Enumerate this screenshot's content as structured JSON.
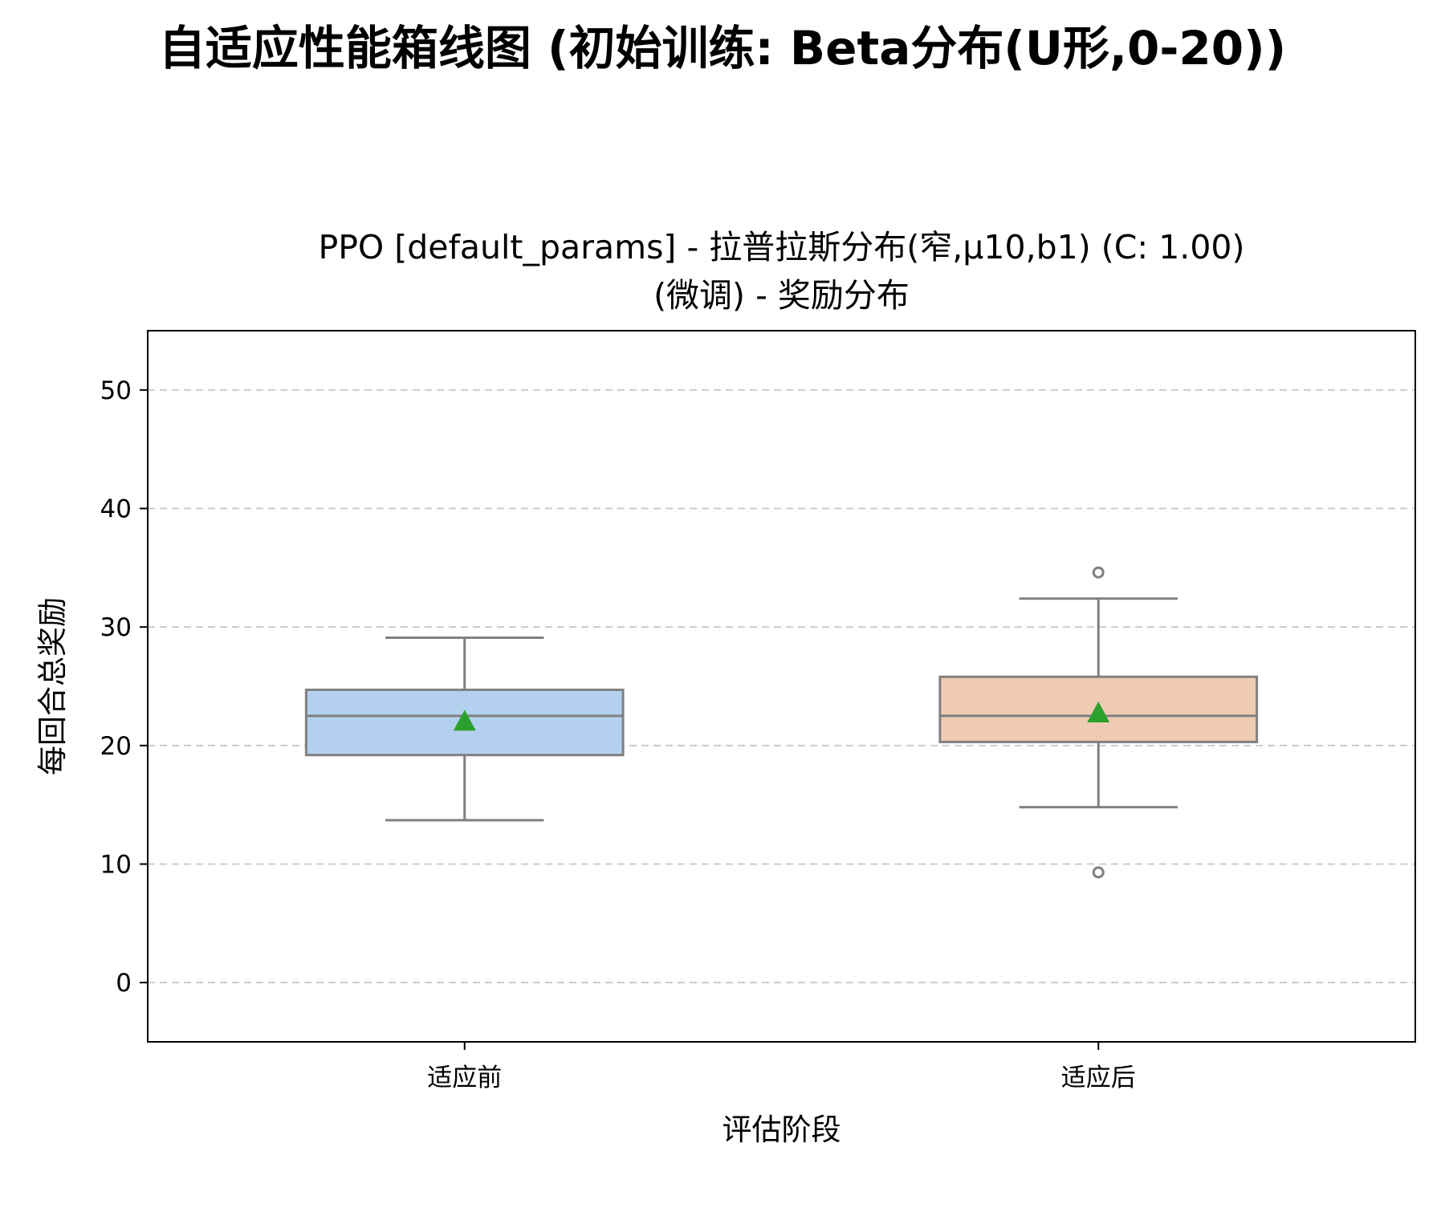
{
  "figure": {
    "suptitle": "自适应性能箱线图 (初始训练: Beta分布(U形,0-20))"
  },
  "chart_data": {
    "type": "box",
    "title_lines": [
      "PPO [default_params] - 拉普拉斯分布(窄,μ10,b1) (C: 1.00)",
      "(微调) - 奖励分布"
    ],
    "xlabel": "评估阶段",
    "ylabel": "每回合总奖励",
    "ylim": [
      -5,
      55
    ],
    "yticks": [
      0,
      10,
      20,
      30,
      40,
      50
    ],
    "grid": {
      "axis": "y",
      "style": "dashed",
      "color": "#cccccc"
    },
    "categories": [
      "适应前",
      "适应后"
    ],
    "boxes": [
      {
        "category": "适应前",
        "whisker_low": 13.7,
        "q1": 19.2,
        "median": 22.5,
        "q3": 24.7,
        "whisker_high": 29.1,
        "mean": 22.0,
        "outliers": [],
        "color": "#b3d1ef"
      },
      {
        "category": "适应后",
        "whisker_low": 14.8,
        "q1": 20.3,
        "median": 22.5,
        "q3": 25.8,
        "whisker_high": 32.4,
        "mean": 22.7,
        "outliers": [
          34.6,
          9.3
        ],
        "color": "#efcbb3"
      }
    ],
    "colors": {
      "box_edge": "#808080",
      "mean_marker": "#2ca02c",
      "axis": "#000000"
    }
  }
}
